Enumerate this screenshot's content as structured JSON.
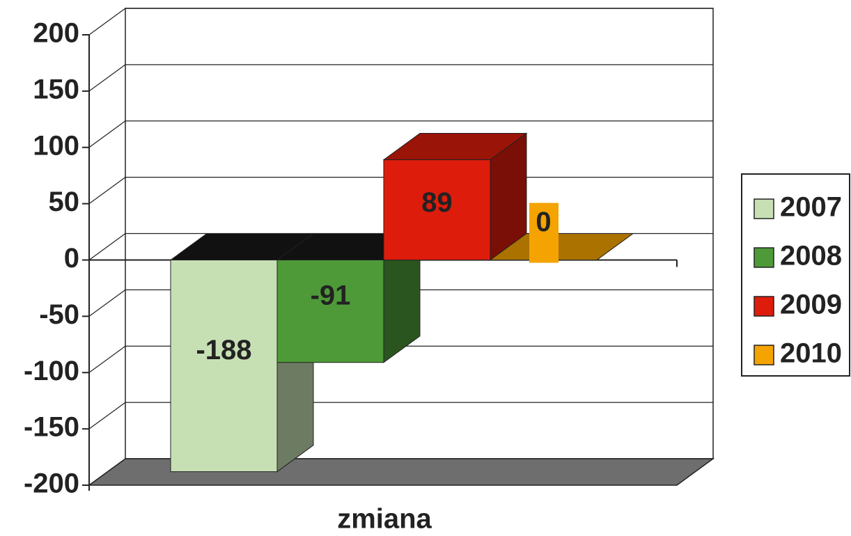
{
  "chart_data": {
    "type": "bar3d",
    "categories": [
      "zmiana"
    ],
    "series": [
      {
        "name": "2007",
        "color": "#c6e0b4",
        "values": [
          -188
        ]
      },
      {
        "name": "2008",
        "color": "#4e9a38",
        "values": [
          -91
        ]
      },
      {
        "name": "2009",
        "color": "#de1c0c",
        "values": [
          89
        ]
      },
      {
        "name": "2010",
        "color": "#f4a300",
        "values": [
          0
        ]
      }
    ],
    "ylim": [
      -200,
      200
    ],
    "yticks": [
      -200,
      -150,
      -100,
      -50,
      0,
      50,
      100,
      150,
      200
    ],
    "grid": true,
    "legend": "right"
  }
}
